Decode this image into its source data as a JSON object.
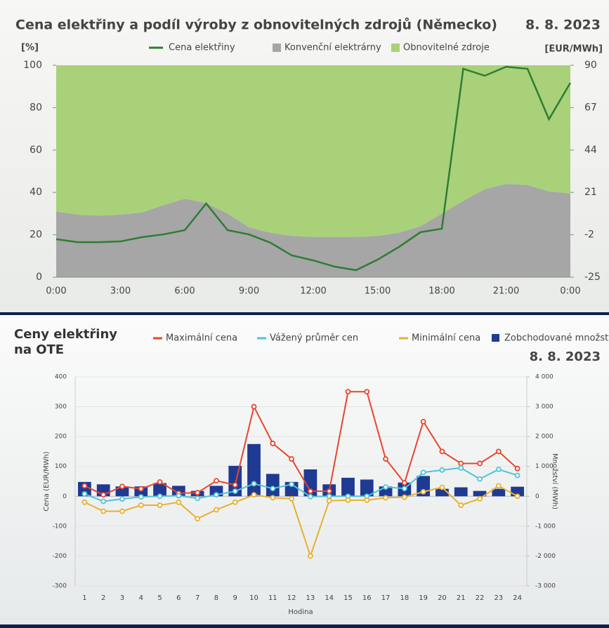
{
  "chart_data": [
    {
      "type": "area",
      "title": "Cena elektřiny a podíl výroby z obnovitelných zdrojů (Německo)",
      "date": "8. 8. 2023",
      "ylabel": "[%]",
      "y2label": "[EUR/MWh]",
      "categories": [
        "0:00",
        null,
        null,
        "3:00",
        null,
        null,
        "6:00",
        null,
        null,
        "9:00",
        null,
        null,
        "12:00",
        null,
        null,
        "15:00",
        null,
        null,
        "18:00",
        null,
        null,
        "21:00",
        null,
        null,
        "0:00"
      ],
      "series": [
        {
          "name": "Cena elektřiny",
          "type": "line",
          "axis": "y2",
          "color": "#2e7d32",
          "values": [
            -4.4,
            -6,
            -6,
            -5.6,
            -3.3,
            -1.8,
            0.5,
            15,
            0.5,
            -1.8,
            -6.3,
            -13.2,
            -15.9,
            -19.3,
            -21.2,
            -15.5,
            -8.6,
            -0.6,
            1.3,
            88.1,
            84.3,
            89.2,
            88.1,
            60.7,
            80.5
          ]
        },
        {
          "name": "Konvenční elektrárny",
          "type": "area",
          "color": "#a6a6a6",
          "values": [
            31,
            29.5,
            29,
            29.5,
            30.5,
            34,
            37,
            35,
            30,
            23.5,
            21,
            19.5,
            19,
            19,
            19,
            19.5,
            21,
            24,
            30,
            36,
            41.5,
            44,
            43.5,
            40.5,
            39.5
          ]
        },
        {
          "name": "Obnovitelné zdroje",
          "type": "area",
          "color": "#a9d17a",
          "values": [
            69,
            70.5,
            71,
            70.5,
            69.5,
            66,
            63,
            65,
            70,
            76.5,
            79,
            80.5,
            81,
            81,
            81,
            80.5,
            79,
            76,
            70,
            64,
            58.5,
            56,
            56.5,
            59.5,
            60.5
          ]
        }
      ],
      "ylim": [
        0,
        100
      ],
      "yticks": [
        0,
        20,
        40,
        60,
        80,
        100
      ],
      "y2lim": [
        -25,
        90
      ],
      "y2ticks": [
        -25,
        -2,
        21,
        44,
        67,
        90
      ]
    },
    {
      "type": "line",
      "title": "Ceny elektřiny na OTE",
      "date": "8. 8. 2023",
      "ylabel": "Cena (EUR/MWh)",
      "y2label": "Množství (MWh)",
      "xlabel": "Hodina",
      "categories": [
        "1",
        "2",
        "3",
        "4",
        "5",
        "6",
        "7",
        "8",
        "9",
        "10",
        "11",
        "12",
        "13",
        "14",
        "15",
        "16",
        "17",
        "18",
        "19",
        "20",
        "21",
        "22",
        "23",
        "24"
      ],
      "series": [
        {
          "name": "Maximální cena",
          "type": "line",
          "color": "#e8452c",
          "values": [
            35,
            5,
            33,
            25,
            48,
            10,
            12,
            52,
            38,
            300,
            177,
            125,
            17,
            17,
            350,
            350,
            125,
            45,
            250,
            150,
            110,
            110,
            150,
            93
          ]
        },
        {
          "name": "Vážený průměr cen",
          "type": "line",
          "color": "#4fc3d9",
          "values": [
            8,
            -17,
            -9,
            -2,
            0,
            2,
            -7,
            5,
            17,
            42,
            26,
            40,
            -1,
            0,
            0,
            0,
            31,
            26,
            80,
            88,
            95,
            58,
            90,
            70
          ]
        },
        {
          "name": "Minimální cena",
          "type": "line",
          "color": "#e8b030",
          "values": [
            -20,
            -50,
            -50,
            -30,
            -30,
            -20,
            -75,
            -45,
            -20,
            5,
            -5,
            -8,
            -200,
            -15,
            -13,
            -13,
            -5,
            -3,
            15,
            30,
            -30,
            -8,
            35,
            0
          ]
        },
        {
          "name": "Zobchodované množství",
          "type": "bar",
          "axis": "y2",
          "color": "#1f3a93",
          "values": [
            480,
            400,
            330,
            330,
            440,
            350,
            180,
            350,
            1020,
            1750,
            750,
            480,
            900,
            400,
            620,
            560,
            330,
            460,
            680,
            250,
            300,
            180,
            250,
            320
          ]
        }
      ],
      "ylim": [
        -300,
        400
      ],
      "yticks": [
        -300,
        -200,
        -100,
        0,
        100,
        200,
        300,
        400
      ],
      "y2lim": [
        -3000,
        4000
      ],
      "y2ticks": [
        {
          "value": -3000,
          "label": "-3 000"
        },
        {
          "value": -2000,
          "label": "-2 000"
        },
        {
          "value": -1000,
          "label": "-1 000"
        },
        0,
        {
          "value": 1000,
          "label": "1 000"
        },
        {
          "value": 2000,
          "label": "2 000"
        },
        {
          "value": 3000,
          "label": "3 000"
        },
        {
          "value": 4000,
          "label": "4 000"
        }
      ]
    }
  ]
}
